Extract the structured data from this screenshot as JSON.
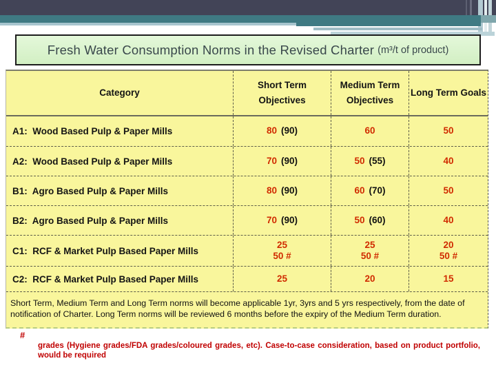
{
  "title": {
    "text": "Fresh Water Consumption Norms in the Revised Charter",
    "unit_suffix": "(m³/t of product)"
  },
  "table": {
    "headers": [
      "Category",
      "Short Term Objectives",
      "Medium Term Objectives",
      "Long Term Goals"
    ],
    "rows": [
      {
        "category": "A1:  Wood Based Pulp & Paper Mills",
        "cells": [
          [
            {
              "red": "80",
              "black": "(90)"
            }
          ],
          [
            {
              "red": "60"
            }
          ],
          [
            {
              "red": "50"
            }
          ]
        ]
      },
      {
        "category": "A2:  Wood Based Pulp & Paper Mills",
        "cells": [
          [
            {
              "red": "70",
              "black": "(90)"
            }
          ],
          [
            {
              "red": "50",
              "black": "(55)"
            }
          ],
          [
            {
              "red": "40"
            }
          ]
        ]
      },
      {
        "category": "B1:  Agro Based Pulp & Paper Mills",
        "cells": [
          [
            {
              "red": "80",
              "black": "(90)"
            }
          ],
          [
            {
              "red": "60",
              "black": "(70)"
            }
          ],
          [
            {
              "red": "50"
            }
          ]
        ]
      },
      {
        "category": "B2:  Agro Based Pulp & Paper Mills",
        "cells": [
          [
            {
              "red": "70",
              "black": "(90)"
            }
          ],
          [
            {
              "red": "50",
              "black": "(60)"
            }
          ],
          [
            {
              "red": "40"
            }
          ]
        ]
      },
      {
        "category": "C1:  RCF & Market Pulp Based Paper Mills",
        "cells": [
          [
            {
              "red": "25"
            },
            {
              "red": "50 #"
            }
          ],
          [
            {
              "red": "25"
            },
            {
              "red": "50 #"
            }
          ],
          [
            {
              "red": "20"
            },
            {
              "red": "50 #"
            }
          ]
        ]
      },
      {
        "category": "C2:  RCF & Market Pulp Based Paper Mills",
        "cells": [
          [
            {
              "red": "25"
            }
          ],
          [
            {
              "red": "20"
            }
          ],
          [
            {
              "red": "15"
            }
          ]
        ]
      }
    ],
    "note": "Short Term, Medium Term and Long Term norms will become applicable 1yr, 3yrs and 5 yrs respectively, from the date of notification of Charter.  Long Term norms will be reviewed 6 months before the expiry of the Medium Term duration."
  },
  "footnote": {
    "marker": "#",
    "text": "grades (Hygiene grades/FDA grades/coloured grades, etc).  Case-to-case consideration, based on product portfolio, would be required"
  },
  "colors": {
    "value_red": "#d02b00",
    "footnote_red": "#c00000",
    "table_yellow": "#f9f69c",
    "title_green": "#dbf3cd",
    "header_bar_dark": "#424457",
    "header_bar_teal": "#3f7a83"
  }
}
